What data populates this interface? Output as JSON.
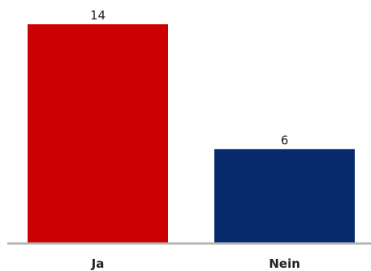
{
  "chart_data": {
    "type": "bar",
    "categories": [
      "Ja",
      "Nein"
    ],
    "values": [
      14,
      6
    ],
    "title": "",
    "xlabel": "",
    "ylabel": "",
    "ylim": [
      0,
      14
    ],
    "grid": false,
    "legend": "none",
    "colors": [
      "#cc0000",
      "#062a6c"
    ],
    "data_labels": [
      "14",
      "6"
    ]
  }
}
